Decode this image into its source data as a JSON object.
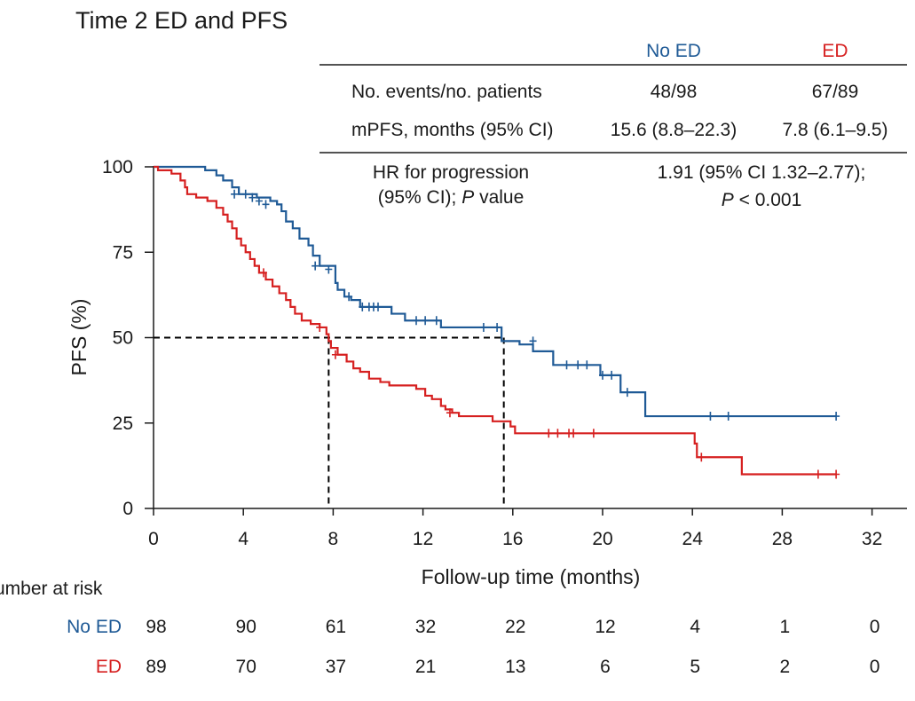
{
  "chart_data": {
    "type": "line",
    "subtype": "kaplan-meier",
    "title": "Time 2 ED and PFS",
    "xlabel": "Follow-up time (months)",
    "ylabel": "PFS (%)",
    "xlim": [
      0,
      32
    ],
    "ylim": [
      0,
      100
    ],
    "xticks": [
      0,
      4,
      8,
      12,
      16,
      20,
      24,
      28,
      32
    ],
    "yticks": [
      0,
      25,
      50,
      75,
      100
    ],
    "colors": {
      "no_ed": "#1f5a96",
      "ed": "#d62020",
      "text": "#1a1a1a"
    },
    "median_guides": {
      "y": 50,
      "x": [
        7.8,
        15.6
      ]
    },
    "summary_table": {
      "col_headers": [
        "No ED",
        "ED"
      ],
      "rows": [
        {
          "label": "No. events/no. patients",
          "values": [
            "48/98",
            "67/89"
          ]
        },
        {
          "label": "mPFS, months (95% CI)",
          "values": [
            "15.6 (8.8–22.3)",
            "7.8 (6.1–9.5)"
          ]
        }
      ],
      "hr_label_line1": "HR for progression",
      "hr_label_line2a": "(95% CI); ",
      "hr_label_line2b": "P",
      "hr_label_line2c": " value",
      "hr_value_line1": "1.91 (95% CI 1.32–2.77);",
      "hr_value_line2a": "P",
      "hr_value_line2b": " < 0.001"
    },
    "series": [
      {
        "name": "No ED",
        "steps": [
          [
            0,
            100
          ],
          [
            2.3,
            99
          ],
          [
            2.8,
            97.5
          ],
          [
            3.1,
            96
          ],
          [
            3.5,
            94
          ],
          [
            3.8,
            92
          ],
          [
            4.6,
            91
          ],
          [
            5.2,
            90
          ],
          [
            5.5,
            89
          ],
          [
            5.7,
            87
          ],
          [
            5.9,
            84
          ],
          [
            6.2,
            82
          ],
          [
            6.5,
            79
          ],
          [
            6.9,
            77
          ],
          [
            7.1,
            74
          ],
          [
            7.4,
            71
          ],
          [
            8.1,
            66
          ],
          [
            8.2,
            64
          ],
          [
            8.5,
            62
          ],
          [
            8.8,
            61
          ],
          [
            9.2,
            59
          ],
          [
            10.6,
            57
          ],
          [
            11.2,
            55
          ],
          [
            12.8,
            53
          ],
          [
            15.5,
            49
          ],
          [
            16.3,
            48
          ],
          [
            16.9,
            46
          ],
          [
            17.8,
            42
          ],
          [
            19.9,
            39
          ],
          [
            20.8,
            34
          ],
          [
            21.9,
            27
          ],
          [
            30.4,
            27
          ]
        ],
        "censors": [
          [
            3.6,
            92
          ],
          [
            4.1,
            92
          ],
          [
            4.4,
            91
          ],
          [
            4.7,
            90
          ],
          [
            5.0,
            89
          ],
          [
            7.2,
            71
          ],
          [
            7.8,
            70
          ],
          [
            8.7,
            62
          ],
          [
            9.3,
            59
          ],
          [
            9.6,
            59
          ],
          [
            9.8,
            59
          ],
          [
            10.0,
            59
          ],
          [
            11.7,
            55
          ],
          [
            12.1,
            55
          ],
          [
            12.6,
            55
          ],
          [
            14.7,
            53
          ],
          [
            15.3,
            53
          ],
          [
            16.9,
            49
          ],
          [
            18.4,
            42
          ],
          [
            18.9,
            42
          ],
          [
            19.3,
            42
          ],
          [
            20.0,
            39
          ],
          [
            20.4,
            39
          ],
          [
            21.1,
            34
          ],
          [
            24.8,
            27
          ],
          [
            25.6,
            27
          ],
          [
            30.4,
            27
          ]
        ],
        "at_risk": [
          98,
          90,
          61,
          32,
          22,
          12,
          4,
          1,
          0
        ]
      },
      {
        "name": "ED",
        "steps": [
          [
            0,
            100
          ],
          [
            0.2,
            99
          ],
          [
            0.8,
            98
          ],
          [
            1.2,
            96
          ],
          [
            1.4,
            94
          ],
          [
            1.5,
            92
          ],
          [
            1.9,
            91
          ],
          [
            2.4,
            90
          ],
          [
            2.8,
            88
          ],
          [
            3.1,
            86
          ],
          [
            3.3,
            84
          ],
          [
            3.5,
            82
          ],
          [
            3.7,
            79
          ],
          [
            3.9,
            77
          ],
          [
            4.1,
            75
          ],
          [
            4.3,
            73
          ],
          [
            4.5,
            71
          ],
          [
            4.7,
            69
          ],
          [
            5.0,
            67
          ],
          [
            5.3,
            65
          ],
          [
            5.6,
            63
          ],
          [
            5.9,
            61
          ],
          [
            6.1,
            59
          ],
          [
            6.3,
            57
          ],
          [
            6.6,
            55
          ],
          [
            7.0,
            54
          ],
          [
            7.4,
            53
          ],
          [
            7.7,
            51
          ],
          [
            7.8,
            49
          ],
          [
            7.9,
            47
          ],
          [
            8.2,
            45
          ],
          [
            8.6,
            43
          ],
          [
            8.9,
            41
          ],
          [
            9.2,
            40
          ],
          [
            9.6,
            38
          ],
          [
            10.1,
            37
          ],
          [
            10.5,
            36
          ],
          [
            11.7,
            35
          ],
          [
            12.1,
            33
          ],
          [
            12.4,
            32
          ],
          [
            12.8,
            30
          ],
          [
            13.0,
            29
          ],
          [
            13.3,
            28
          ],
          [
            13.6,
            27
          ],
          [
            15.1,
            25.5
          ],
          [
            15.9,
            24
          ],
          [
            16.1,
            22
          ],
          [
            24.1,
            19
          ],
          [
            24.2,
            15
          ],
          [
            26.2,
            10
          ],
          [
            30.4,
            10
          ]
        ],
        "censors": [
          [
            4.9,
            69
          ],
          [
            7.4,
            53
          ],
          [
            8.1,
            45
          ],
          [
            13.2,
            28
          ],
          [
            17.6,
            22
          ],
          [
            18.0,
            22
          ],
          [
            18.5,
            22
          ],
          [
            18.7,
            22
          ],
          [
            19.6,
            22
          ],
          [
            24.4,
            15
          ],
          [
            29.6,
            10
          ],
          [
            30.4,
            10
          ]
        ],
        "at_risk": [
          89,
          70,
          37,
          21,
          13,
          6,
          5,
          2,
          0
        ]
      }
    ],
    "at_risk_title": "umber at risk",
    "at_risk_labels": [
      "No ED",
      "ED"
    ]
  }
}
